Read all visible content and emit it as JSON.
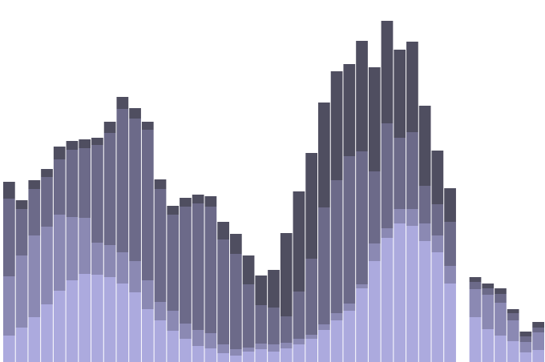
{
  "chart_data": {
    "type": "bar",
    "stacked": true,
    "x_count": 43,
    "ylim": [
      0,
      440
    ],
    "grid": false,
    "legend": "none",
    "colors": [
      "#acaade",
      "#8b89b3",
      "#6c6a89",
      "#4f4e60"
    ],
    "series": [
      {
        "values": [
          33,
          43,
          56,
          72,
          89,
          102,
          110,
          109,
          106,
          98,
          87,
          66,
          52,
          39,
          29,
          20,
          17,
          11,
          8,
          13,
          16,
          13,
          17,
          22,
          29,
          40,
          52,
          64,
          92,
          126,
          155,
          173,
          170,
          151,
          137,
          98,
          0,
          56,
          41,
          33,
          26,
          12,
          15
        ]
      },
      {
        "values": [
          74,
          90,
          102,
          97,
          95,
          79,
          70,
          40,
          40,
          39,
          39,
          36,
          23,
          25,
          19,
          20,
          19,
          11,
          8,
          5,
          7,
          9,
          7,
          7,
          5,
          7,
          9,
          9,
          5,
          22,
          12,
          18,
          21,
          22,
          21,
          22,
          0,
          35,
          43,
          41,
          26,
          13,
          22
        ]
      },
      {
        "values": [
          97,
          58,
          58,
          62,
          69,
          84,
          87,
          122,
          140,
          179,
          178,
          188,
          141,
          120,
          146,
          158,
          158,
          131,
          119,
          79,
          48,
          46,
          33,
          59,
          95,
          146,
          166,
          184,
          166,
          90,
          131,
          89,
          96,
          47,
          39,
          55,
          0,
          9,
          8,
          11,
          9,
          7,
          6
        ]
      },
      {
        "values": [
          21,
          11,
          11,
          10,
          16,
          11,
          11,
          9,
          14,
          15,
          13,
          10,
          12,
          11,
          11,
          11,
          13,
          22,
          25,
          36,
          37,
          47,
          104,
          125,
          132,
          131,
          136,
          115,
          138,
          130,
          128,
          110,
          113,
          100,
          67,
          42,
          0,
          6,
          6,
          7,
          5,
          6,
          7
        ]
      },
      {
        "values": [
          0,
          0,
          0,
          0,
          0,
          0,
          0,
          0,
          0,
          0,
          0,
          0,
          0,
          0,
          0,
          0,
          0,
          0,
          0,
          0,
          0,
          0,
          0,
          0,
          0,
          0,
          0,
          0,
          0,
          0,
          0,
          0,
          0,
          0,
          0,
          0,
          0,
          0,
          0,
          0,
          0,
          0,
          0
        ]
      }
    ]
  }
}
